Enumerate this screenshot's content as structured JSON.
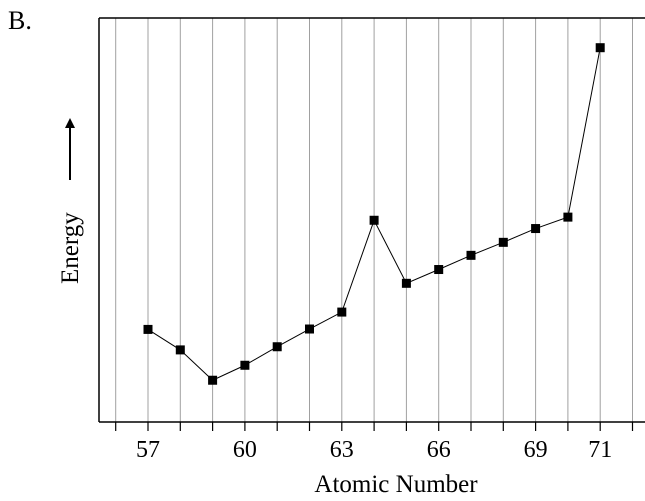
{
  "panel_label": "B.",
  "chart_data": {
    "type": "line",
    "title": "",
    "xlabel": "Atomic Number",
    "ylabel": "Energy",
    "xlim": [
      55.5,
      72.2
    ],
    "ylim": [
      0,
      100
    ],
    "grid": "vertical",
    "x_gridlines": [
      56,
      57,
      58,
      59,
      60,
      61,
      62,
      63,
      64,
      65,
      66,
      67,
      68,
      69,
      70,
      71,
      72
    ],
    "x_tick_labels": [
      {
        "x": 57,
        "label": "57"
      },
      {
        "x": 60,
        "label": "60"
      },
      {
        "x": 63,
        "label": "63"
      },
      {
        "x": 66,
        "label": "66"
      },
      {
        "x": 69,
        "label": "69"
      },
      {
        "x": 71,
        "label": "71"
      }
    ],
    "marker": "square",
    "series": [
      {
        "x": [
          57,
          58,
          59,
          60,
          61,
          62,
          63,
          64,
          65,
          66,
          67,
          68,
          69,
          70,
          71
        ],
        "values": [
          23.5,
          18.3,
          10.6,
          14.4,
          19.1,
          23.6,
          27.9,
          51.2,
          35.2,
          38.7,
          42.3,
          45.6,
          49.1,
          52.0,
          95.0
        ]
      }
    ]
  }
}
